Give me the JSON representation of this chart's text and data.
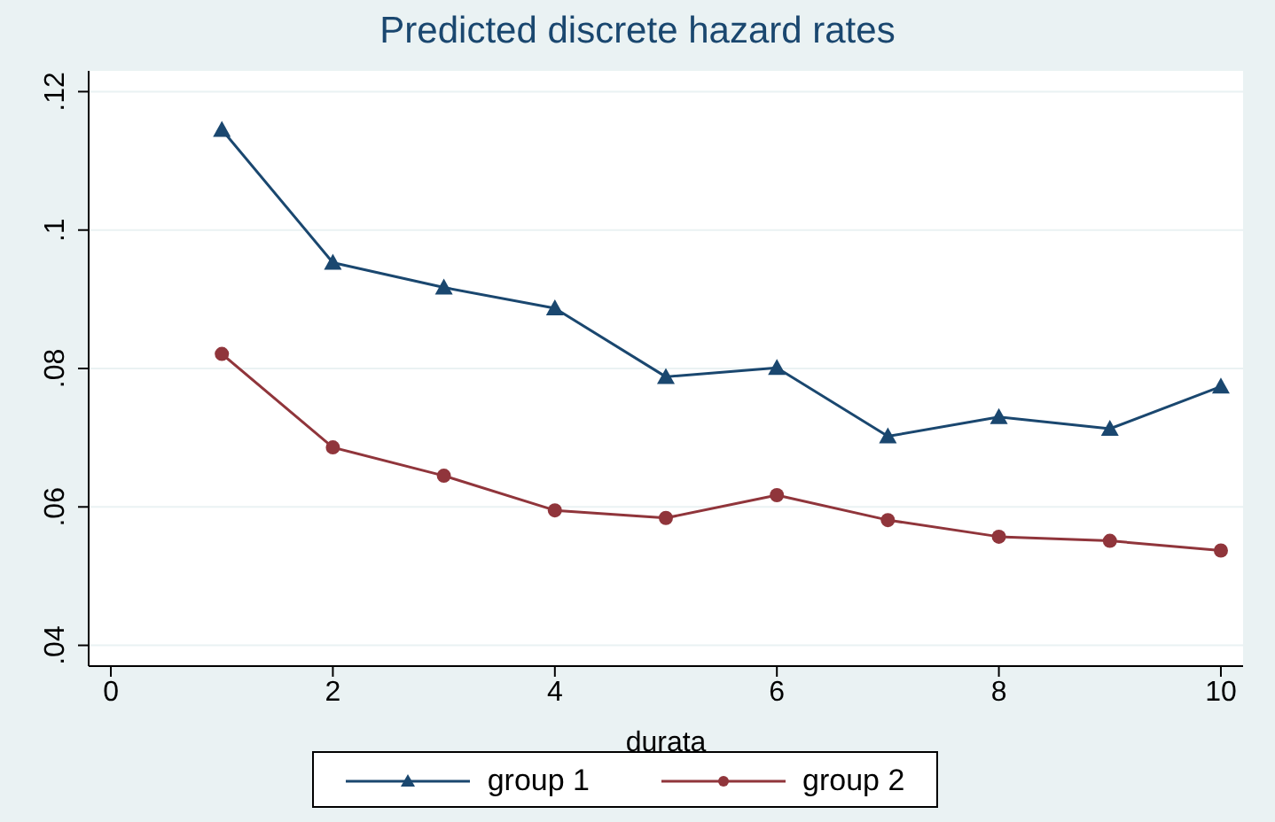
{
  "chart_data": {
    "type": "line",
    "title": "Predicted discrete hazard rates",
    "xlabel": "durata",
    "x": [
      1,
      2,
      3,
      4,
      5,
      6,
      7,
      8,
      9,
      10
    ],
    "series": [
      {
        "name": "group 1",
        "color": "#1a476f",
        "marker": "triangle",
        "values": [
          0.1145,
          0.0953,
          0.0917,
          0.0887,
          0.0788,
          0.0801,
          0.0702,
          0.073,
          0.0713,
          0.0774
        ]
      },
      {
        "name": "group 2",
        "color": "#90353b",
        "marker": "circle",
        "values": [
          0.0821,
          0.0686,
          0.0645,
          0.0595,
          0.0584,
          0.0617,
          0.0581,
          0.0557,
          0.0551,
          0.0537
        ]
      }
    ],
    "xlim": [
      -0.2,
      10.2
    ],
    "xticks": [
      0,
      2,
      4,
      6,
      8,
      10
    ],
    "ylim": [
      0.037,
      0.123
    ],
    "yticks": [
      {
        "value": 0.04,
        "label": ".04"
      },
      {
        "value": 0.06,
        "label": ".06"
      },
      {
        "value": 0.08,
        "label": ".08"
      },
      {
        "value": 0.1,
        "label": ".1"
      },
      {
        "value": 0.12,
        "label": ".12"
      }
    ],
    "grid": "y",
    "legend": "bottom",
    "line_style": "solid"
  }
}
